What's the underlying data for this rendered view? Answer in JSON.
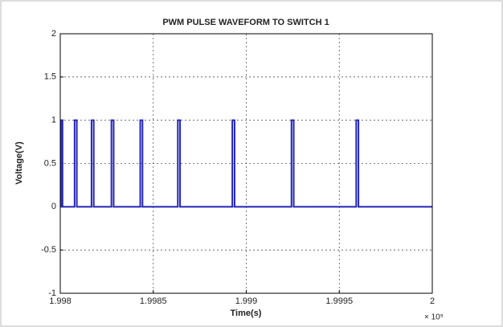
{
  "chart_data": {
    "type": "line",
    "title": "PWM PULSE WAVEFORM TO SWITCH 1",
    "x_label": "Time(s)",
    "y_label": "Voltage(V)",
    "x_scale_label": "× 10⁵",
    "x": [
      1.998,
      1.998003,
      1.998003,
      1.998012,
      1.998012,
      1.998077,
      1.998077,
      1.998089,
      1.998089,
      1.998168,
      1.998168,
      1.99818,
      1.99818,
      1.998275,
      1.998275,
      1.998287,
      1.998287,
      1.99843,
      1.99843,
      1.998442,
      1.998442,
      1.998632,
      1.998632,
      1.998644,
      1.998644,
      1.998925,
      1.998925,
      1.998937,
      1.998937,
      1.999243,
      1.999243,
      1.999255,
      1.999255,
      1.999591,
      1.999591,
      1.999603,
      1.999603,
      2
    ],
    "series": [
      {
        "color": "#2424b8",
        "values": [
          0,
          0,
          1,
          1,
          0,
          0,
          1,
          1,
          0,
          0,
          1,
          1,
          0,
          0,
          1,
          1,
          0,
          0,
          1,
          1,
          0,
          0,
          1,
          1,
          0,
          0,
          1,
          1,
          0,
          0,
          1,
          1,
          0,
          0,
          1,
          1,
          0,
          0
        ]
      }
    ],
    "xlim": [
      1.998,
      2
    ],
    "xticks": [
      1.998,
      1.9985,
      1.999,
      1.9995,
      2
    ],
    "ylim": [
      -1,
      2
    ],
    "yticks": [
      -1,
      -0.5,
      0,
      0.5,
      1,
      1.5,
      2
    ],
    "grid": true
  }
}
